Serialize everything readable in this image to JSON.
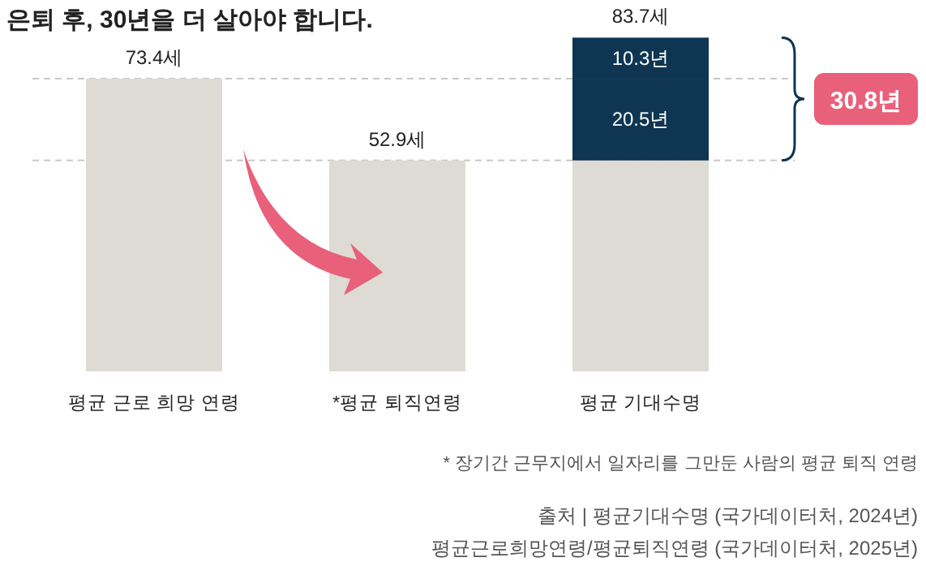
{
  "chart_data": {
    "type": "bar",
    "stacked": true,
    "title": "은퇴 후, 30년을 더 살아야 합니다.",
    "categories": [
      "평균 근로 희망 연령",
      "*평균 퇴직연령",
      "평균 기대수명"
    ],
    "series": [
      {
        "color": "#dddbd3",
        "values": [
          73.4,
          52.9,
          52.9
        ],
        "value_labels": [
          "73.4세",
          "52.9세",
          null
        ]
      },
      {
        "color": "#0e3552",
        "values": [
          null,
          null,
          20.5
        ],
        "value_labels": [
          null,
          null,
          "20.5년"
        ]
      },
      {
        "color": "#0e3552",
        "values": [
          null,
          null,
          10.3
        ],
        "value_labels": [
          null,
          null,
          "10.3년"
        ]
      }
    ],
    "totals": [
      null,
      null,
      "83.7세"
    ],
    "ylim": [
      0,
      85
    ],
    "ref_lines": [
      {
        "axis": "y",
        "value": 73.4,
        "color": "#c8c8c8",
        "line_style": "dashed"
      },
      {
        "axis": "y",
        "value": 52.9,
        "color": "#c8c8c8",
        "line_style": "dashed"
      }
    ],
    "annotations": [
      "30.8년",
      "* 장기간 근무지에서 일자리를 그만둔 사람의 평균 퇴직 연령",
      "출처 | 평균기대수명 (국가데이터처, 2024년)",
      "평균근로희망연령/평균퇴직연령 (국가데이터처, 2025년)"
    ]
  }
}
